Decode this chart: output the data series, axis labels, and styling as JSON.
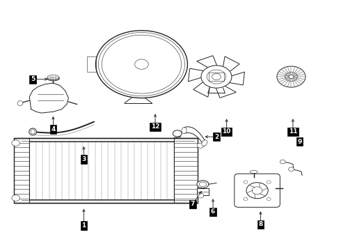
{
  "background_color": "#ffffff",
  "line_color": "#222222",
  "fig_width": 4.9,
  "fig_height": 3.6,
  "dpi": 100,
  "label_data": [
    [
      1,
      0.245,
      0.175,
      0.245,
      0.1
    ],
    [
      2,
      0.595,
      0.455,
      0.635,
      0.455
    ],
    [
      3,
      0.245,
      0.425,
      0.245,
      0.365
    ],
    [
      4,
      0.155,
      0.545,
      0.155,
      0.485
    ],
    [
      5,
      0.145,
      0.685,
      0.095,
      0.685
    ],
    [
      6,
      0.625,
      0.215,
      0.625,
      0.155
    ],
    [
      7,
      0.595,
      0.245,
      0.565,
      0.185
    ],
    [
      8,
      0.765,
      0.165,
      0.765,
      0.105
    ],
    [
      9,
      0.865,
      0.435,
      0.88,
      0.435
    ],
    [
      10,
      0.665,
      0.535,
      0.665,
      0.475
    ],
    [
      11,
      0.86,
      0.535,
      0.86,
      0.475
    ],
    [
      12,
      0.455,
      0.555,
      0.455,
      0.495
    ]
  ]
}
